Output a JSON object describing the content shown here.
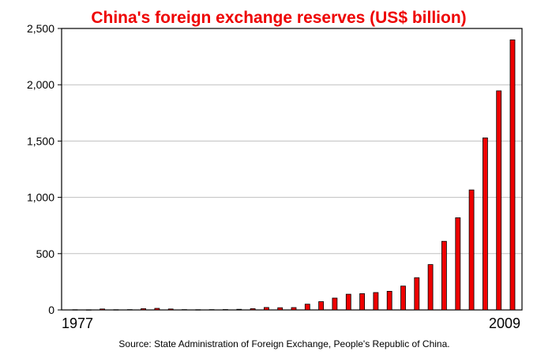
{
  "chart_data": {
    "type": "bar",
    "title": "China's foreign exchange reserves (US$ billion)",
    "source": "Source: State Administration of Foreign Exchange, People's Republic of China.",
    "xlabel": "",
    "ylabel": "",
    "x_first_label": "1977",
    "x_last_label": "2009",
    "ylim": [
      0,
      2500
    ],
    "yticks": [
      0,
      500,
      1000,
      1500,
      2000,
      2500
    ],
    "ytick_labels": [
      "0",
      "500",
      "1,000",
      "1,500",
      "2,000",
      "2,500"
    ],
    "grid": "horizontal",
    "legend": "none",
    "categories": [
      "1977",
      "1978",
      "1979",
      "1980",
      "1981",
      "1982",
      "1983",
      "1984",
      "1985",
      "1986",
      "1987",
      "1988",
      "1989",
      "1990",
      "1991",
      "1992",
      "1993",
      "1994",
      "1995",
      "1996",
      "1997",
      "1998",
      "1999",
      "2000",
      "2001",
      "2002",
      "2003",
      "2004",
      "2005",
      "2006",
      "2007",
      "2008",
      "2009"
    ],
    "values": [
      2.3,
      1.6,
      8.4,
      2.3,
      2.7,
      11.3,
      14.3,
      8.2,
      2.6,
      2.1,
      2.9,
      3.4,
      5.6,
      11.1,
      21.7,
      19.4,
      21.2,
      51.6,
      73.6,
      105.0,
      139.9,
      145.0,
      154.7,
      165.6,
      212.2,
      286.4,
      403.3,
      609.9,
      818.9,
      1066.3,
      1528.2,
      1946.0,
      2399.2
    ],
    "colors": {
      "bar_fill": "#ee0000",
      "bar_stroke": "#000000",
      "title": "#ee0000",
      "grid": "#c0c0c0",
      "axis": "#000000"
    }
  }
}
